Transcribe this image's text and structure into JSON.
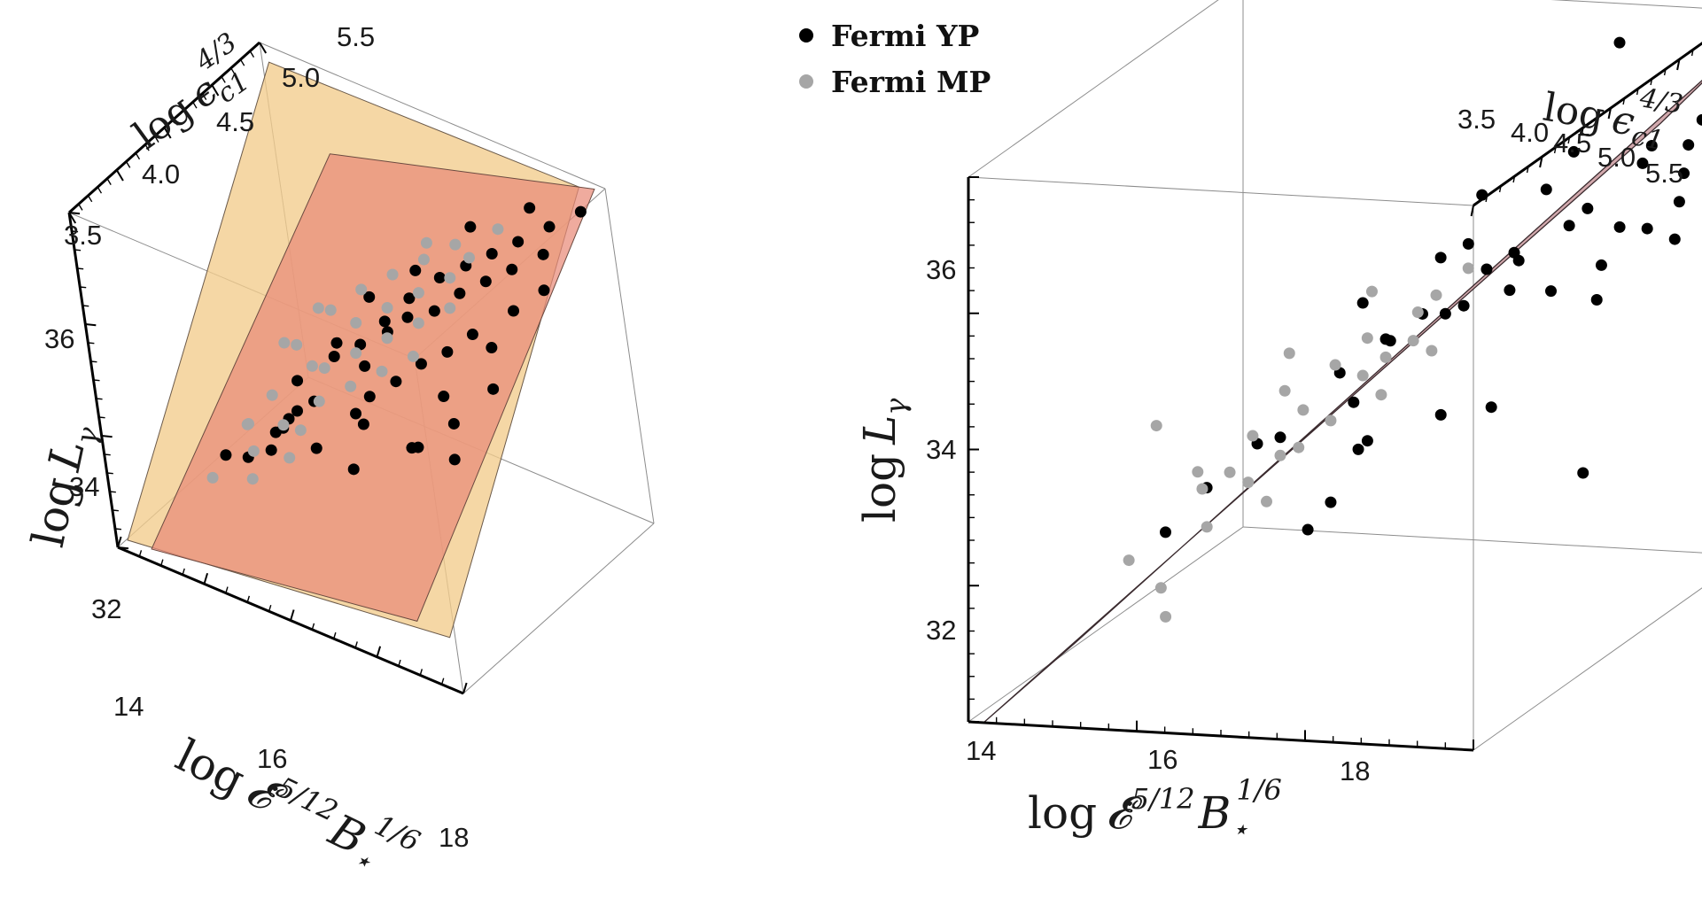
{
  "legend": {
    "yp_label": "Fermi YP",
    "mp_label": "Fermi MP",
    "yp_color": "#000000",
    "mp_color": "#a6a6a6"
  },
  "colors": {
    "plane_a": "#f2cc8c",
    "plane_b": "#e98a78",
    "plane_c": "#c8969b",
    "box": "#8c8c8c",
    "axis": "#000000"
  },
  "labels": {
    "log": "log",
    "eps_sym": "ϵ",
    "eps_sub": "c1",
    "eps_sup": "4/3",
    "L_sym": "L",
    "L_sub": "γ",
    "E_sym": "𝓔̇",
    "E_sup": "5/12",
    "B_sym": "B",
    "B_sub": "⋆",
    "B_sup": "1/6"
  },
  "chart_data": [
    {
      "type": "scatter3d",
      "panel": "left",
      "x_label": "log 𝓔̇^{5/12} B⋆^{1/6}",
      "y_label": "log ϵ_{c1}^{4/3}",
      "z_label": "log L_γ",
      "x_ticks": [
        "14",
        "16",
        "18"
      ],
      "y_ticks": [
        "3.5",
        "4.0",
        "4.5",
        "5.0",
        "5.5"
      ],
      "z_ticks": [
        "32",
        "34",
        "36"
      ],
      "xlim": [
        13.8,
        19.5
      ],
      "ylim": [
        3.5,
        5.5
      ],
      "zlim": [
        31.0,
        37.0
      ],
      "planes": [
        "fit plane (tan)",
        "fit plane (salmon)"
      ],
      "series": [
        {
          "name": "Fermi YP",
          "points": [
            [
              14.6,
              4.7,
              31.6
            ],
            [
              14.8,
              4.1,
              32.2
            ],
            [
              15.0,
              4.2,
              32.1
            ],
            [
              15.3,
              4.6,
              33.0
            ],
            [
              15.5,
              4.3,
              32.7
            ],
            [
              15.8,
              4.0,
              32.9
            ],
            [
              16.0,
              4.1,
              33.4
            ],
            [
              16.2,
              4.5,
              34.0
            ],
            [
              16.3,
              4.2,
              33.7
            ],
            [
              16.5,
              4.6,
              34.2
            ],
            [
              16.6,
              4.0,
              33.3
            ],
            [
              16.8,
              4.7,
              34.6
            ],
            [
              16.9,
              4.4,
              34.3
            ],
            [
              17.0,
              4.2,
              33.8
            ],
            [
              17.1,
              4.8,
              35.0
            ],
            [
              17.2,
              4.5,
              34.9
            ],
            [
              17.3,
              4.1,
              33.9
            ],
            [
              17.4,
              4.6,
              35.1
            ],
            [
              17.5,
              4.9,
              35.4
            ],
            [
              17.6,
              4.3,
              34.5
            ],
            [
              17.7,
              4.7,
              35.2
            ],
            [
              17.8,
              5.0,
              35.6
            ],
            [
              17.9,
              4.4,
              34.8
            ],
            [
              18.0,
              4.8,
              35.5
            ],
            [
              18.1,
              5.1,
              35.8
            ],
            [
              18.2,
              4.5,
              35.0
            ],
            [
              18.3,
              4.9,
              35.7
            ],
            [
              18.4,
              5.2,
              36.0
            ],
            [
              18.5,
              4.6,
              35.3
            ],
            [
              18.6,
              5.0,
              35.9
            ],
            [
              18.7,
              4.2,
              34.4
            ],
            [
              18.8,
              5.3,
              36.3
            ],
            [
              18.9,
              4.8,
              35.6
            ],
            [
              19.0,
              5.1,
              36.2
            ],
            [
              19.1,
              4.4,
              34.9
            ],
            [
              19.2,
              5.4,
              36.6
            ],
            [
              19.3,
              4.9,
              36.0
            ],
            [
              17.2,
              4.0,
              33.2
            ],
            [
              17.9,
              4.2,
              33.6
            ],
            [
              18.5,
              5.3,
              36.5
            ],
            [
              16.4,
              4.8,
              34.7
            ],
            [
              15.6,
              4.4,
              32.9
            ],
            [
              16.9,
              5.0,
              35.1
            ],
            [
              18.2,
              4.1,
              33.9
            ],
            [
              17.6,
              5.2,
              35.9
            ],
            [
              18.8,
              4.6,
              35.2
            ],
            [
              19.0,
              4.0,
              34.2
            ],
            [
              15.9,
              4.7,
              33.8
            ],
            [
              17.1,
              4.3,
              34.0
            ],
            [
              18.4,
              4.3,
              34.6
            ]
          ]
        },
        {
          "name": "Fermi MP",
          "points": [
            [
              14.5,
              4.5,
              32.0
            ],
            [
              14.7,
              4.0,
              31.9
            ],
            [
              15.0,
              4.8,
              33.2
            ],
            [
              15.2,
              4.4,
              33.0
            ],
            [
              15.3,
              4.1,
              32.5
            ],
            [
              15.5,
              4.9,
              33.9
            ],
            [
              15.6,
              4.6,
              33.4
            ],
            [
              15.7,
              4.2,
              33.0
            ],
            [
              15.9,
              5.0,
              34.3
            ],
            [
              16.0,
              4.5,
              33.7
            ],
            [
              16.1,
              4.8,
              34.1
            ],
            [
              16.2,
              4.3,
              33.5
            ],
            [
              16.3,
              5.1,
              34.6
            ],
            [
              16.4,
              4.6,
              34.0
            ],
            [
              16.5,
              4.9,
              34.4
            ],
            [
              16.6,
              4.4,
              33.8
            ],
            [
              16.7,
              5.2,
              34.9
            ],
            [
              16.8,
              4.7,
              34.3
            ],
            [
              16.9,
              5.0,
              34.7
            ],
            [
              17.0,
              4.5,
              34.1
            ],
            [
              17.1,
              5.3,
              35.2
            ],
            [
              17.2,
              4.8,
              34.6
            ],
            [
              17.3,
              5.1,
              35.0
            ],
            [
              17.4,
              4.6,
              34.4
            ],
            [
              17.5,
              5.2,
              35.3
            ],
            [
              17.6,
              4.9,
              34.9
            ],
            [
              17.7,
              5.4,
              35.6
            ],
            [
              15.4,
              4.0,
              32.2
            ],
            [
              15.8,
              4.3,
              32.8
            ],
            [
              16.1,
              4.0,
              32.9
            ],
            [
              14.9,
              4.3,
              32.5
            ],
            [
              15.1,
              5.0,
              33.6
            ],
            [
              16.6,
              5.3,
              35.0
            ],
            [
              14.6,
              4.9,
              32.9
            ]
          ]
        }
      ]
    },
    {
      "type": "scatter3d",
      "panel": "right",
      "x_label": "log 𝓔̇^{5/12} B⋆^{1/6}",
      "y_label": "log ϵ_{c1}^{4/3}",
      "z_label": "log L_γ",
      "x_ticks": [
        "14",
        "16",
        "18"
      ],
      "y_ticks": [
        "3.5",
        "4.0",
        "4.5",
        "5.0",
        "5.5"
      ],
      "z_ticks": [
        "32",
        "34",
        "36"
      ],
      "xlim": [
        14.0,
        19.5
      ],
      "ylim": [
        3.5,
        5.5
      ],
      "zlim": [
        31.0,
        37.0
      ],
      "planes": [
        "fit plane (mauve)"
      ],
      "series": [
        {
          "name": "Fermi YP",
          "points": [
            [
              15.1,
              4.2,
              32.4
            ],
            [
              15.4,
              4.3,
              32.8
            ],
            [
              15.8,
              4.4,
              33.2
            ],
            [
              16.2,
              4.3,
              33.4
            ],
            [
              16.4,
              4.6,
              33.8
            ],
            [
              16.5,
              4.3,
              32.4
            ],
            [
              16.6,
              4.4,
              32.6
            ],
            [
              16.7,
              4.5,
              33.6
            ],
            [
              16.9,
              4.6,
              34.2
            ],
            [
              17.0,
              4.4,
              33.3
            ],
            [
              17.1,
              4.5,
              34.3
            ],
            [
              17.2,
              4.8,
              34.9
            ],
            [
              17.3,
              4.6,
              34.5
            ],
            [
              17.4,
              4.7,
              34.4
            ],
            [
              17.5,
              4.6,
              33.4
            ],
            [
              17.6,
              4.7,
              34.5
            ],
            [
              17.7,
              4.8,
              34.8
            ],
            [
              17.8,
              4.6,
              35.3
            ],
            [
              17.9,
              4.9,
              34.8
            ],
            [
              18.0,
              4.8,
              35.0
            ],
            [
              18.1,
              4.7,
              34.7
            ],
            [
              18.2,
              4.9,
              35.6
            ],
            [
              18.3,
              5.0,
              35.1
            ],
            [
              18.4,
              4.8,
              34.6
            ],
            [
              18.5,
              5.0,
              35.3
            ],
            [
              18.6,
              4.9,
              32.5
            ],
            [
              18.7,
              5.1,
              35.0
            ],
            [
              18.8,
              4.9,
              34.8
            ],
            [
              18.9,
              5.2,
              35.8
            ],
            [
              19.0,
              5.1,
              35.0
            ],
            [
              19.1,
              5.3,
              35.4
            ],
            [
              19.2,
              5.2,
              35.2
            ],
            [
              19.3,
              5.1,
              34.9
            ],
            [
              19.4,
              5.4,
              35.7
            ],
            [
              16.8,
              4.5,
              34.7
            ],
            [
              17.9,
              4.7,
              33.4
            ],
            [
              18.4,
              5.3,
              36.8
            ],
            [
              18.6,
              5.0,
              34.3
            ],
            [
              19.0,
              5.4,
              35.6
            ],
            [
              17.5,
              4.9,
              35.5
            ],
            [
              18.2,
              5.1,
              35.8
            ],
            [
              16.9,
              4.4,
              33.2
            ],
            [
              18.8,
              5.2,
              35.6
            ],
            [
              19.3,
              5.3,
              36.0
            ]
          ]
        },
        {
          "name": "Fermi MP",
          "points": [
            [
              15.0,
              4.0,
              32.3
            ],
            [
              15.2,
              4.1,
              31.9
            ],
            [
              15.4,
              4.0,
              31.7
            ],
            [
              15.5,
              4.2,
              32.9
            ],
            [
              15.6,
              4.1,
              33.2
            ],
            [
              15.8,
              4.2,
              33.1
            ],
            [
              15.9,
              4.3,
              33.4
            ],
            [
              16.0,
              4.2,
              33.0
            ],
            [
              16.1,
              4.4,
              33.8
            ],
            [
              16.2,
              4.3,
              33.2
            ],
            [
              16.3,
              4.4,
              33.6
            ],
            [
              16.4,
              4.3,
              33.3
            ],
            [
              16.5,
              4.5,
              34.0
            ],
            [
              16.6,
              4.4,
              33.5
            ],
            [
              16.7,
              4.6,
              34.2
            ],
            [
              16.8,
              4.5,
              33.9
            ],
            [
              16.9,
              4.6,
              34.0
            ],
            [
              17.0,
              4.5,
              33.7
            ],
            [
              17.1,
              4.7,
              34.4
            ],
            [
              17.2,
              4.6,
              34.2
            ],
            [
              17.3,
              4.7,
              34.6
            ],
            [
              17.4,
              4.6,
              34.1
            ],
            [
              17.5,
              4.8,
              34.8
            ],
            [
              15.3,
              4.0,
              33.8
            ],
            [
              16.0,
              4.5,
              34.1
            ],
            [
              16.6,
              4.7,
              34.6
            ],
            [
              15.7,
              4.1,
              32.6
            ],
            [
              16.2,
              4.2,
              32.8
            ]
          ]
        }
      ]
    }
  ]
}
